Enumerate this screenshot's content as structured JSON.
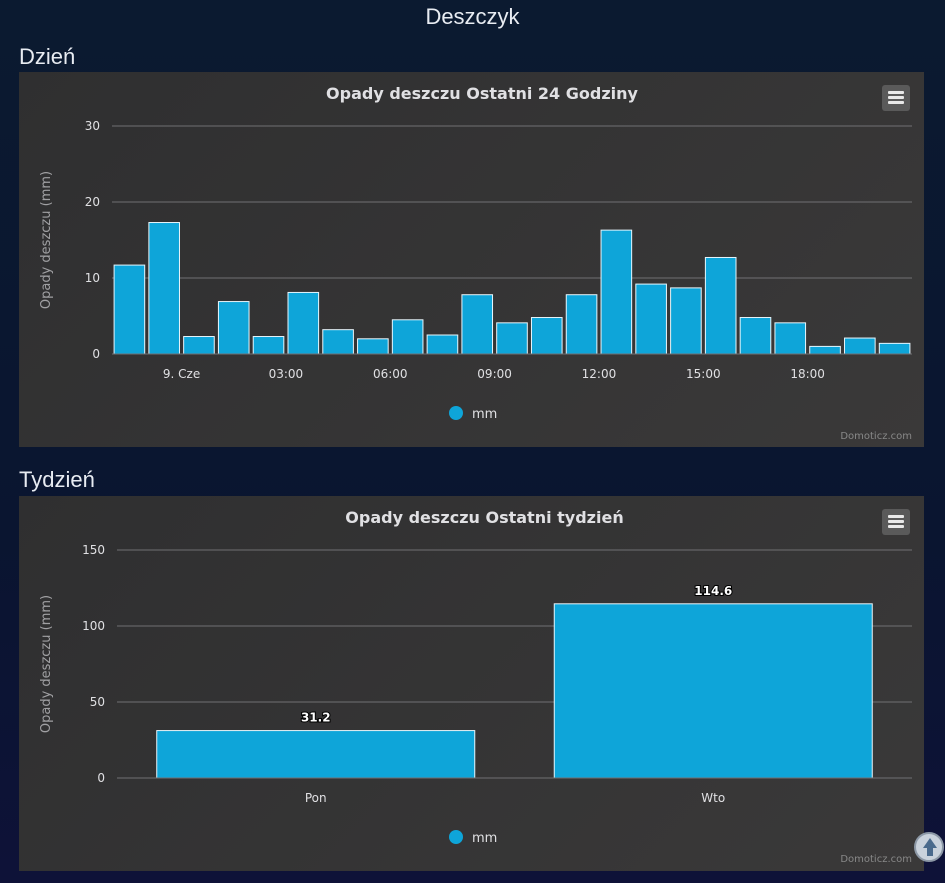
{
  "page": {
    "title": "Deszczyk"
  },
  "sections": {
    "day": {
      "title": "Dzień"
    },
    "week": {
      "title": "Tydzień"
    }
  },
  "credit": "Domoticz.com",
  "colors": {
    "bar": "#0ea5d9",
    "bar_stroke": "#e8f6fc",
    "grid": "#707073",
    "accent": "#1aaee0"
  },
  "chart_data": [
    {
      "type": "bar",
      "title": "Opady deszczu Ostatni 24 Godziny",
      "xlabel": "",
      "ylabel": "Opady deszczu (mm)",
      "ylim": [
        0,
        30
      ],
      "yticks": [
        0,
        10,
        20,
        30
      ],
      "legend": "bottom-center",
      "grid": true,
      "x_tick_labels": [
        {
          "label": "9. Cze",
          "index": 2
        },
        {
          "label": "03:00",
          "index": 5
        },
        {
          "label": "06:00",
          "index": 8
        },
        {
          "label": "09:00",
          "index": 11
        },
        {
          "label": "12:00",
          "index": 14
        },
        {
          "label": "15:00",
          "index": 17
        },
        {
          "label": "18:00",
          "index": 20
        }
      ],
      "series": [
        {
          "name": "mm",
          "values": [
            11.7,
            17.3,
            2.3,
            6.9,
            2.3,
            8.1,
            3.2,
            2.0,
            4.5,
            2.5,
            7.8,
            4.1,
            4.8,
            7.8,
            16.3,
            9.2,
            8.7,
            12.7,
            4.8,
            4.1,
            1.0,
            2.1,
            1.4
          ]
        }
      ]
    },
    {
      "type": "bar",
      "title": "Opady deszczu Ostatni tydzień",
      "xlabel": "",
      "ylabel": "Opady deszczu (mm)",
      "ylim": [
        0,
        150
      ],
      "yticks": [
        0,
        50,
        100,
        150
      ],
      "legend": "bottom-center",
      "grid": true,
      "categories": [
        "Pon",
        "Wto"
      ],
      "series": [
        {
          "name": "mm",
          "values": [
            31.2,
            114.6
          ],
          "labels": [
            "31.2",
            "114.6"
          ]
        }
      ]
    }
  ]
}
